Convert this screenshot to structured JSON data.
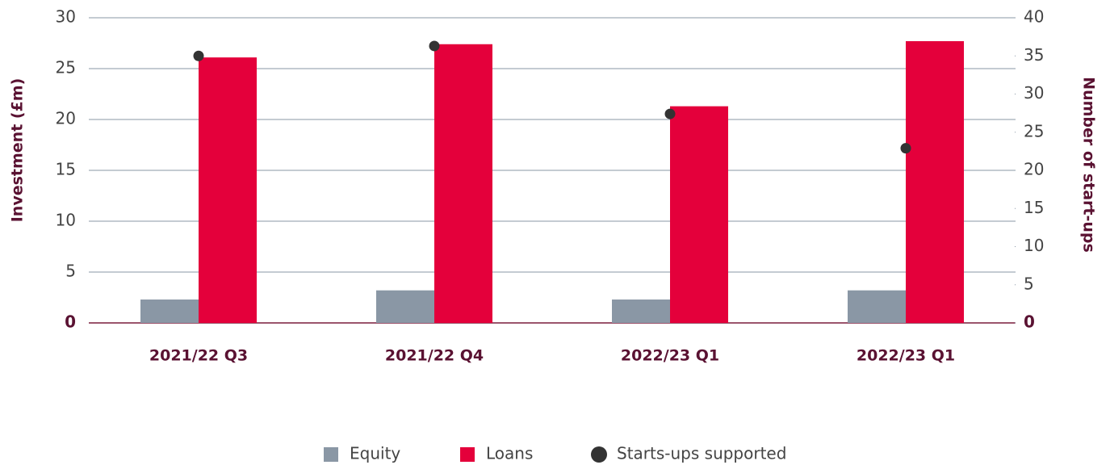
{
  "chart_data": {
    "type": "bar",
    "y_label": "Investment (£m)",
    "y2_label": "Number of start-ups",
    "categories": [
      "2021/22 Q3",
      "2021/22 Q4",
      "2022/23 Q1",
      "2022/23 Q1"
    ],
    "series": [
      {
        "name": "Equity",
        "color": "#8a97a5",
        "values": [
          2.3,
          3.2,
          2.3,
          3.2
        ]
      },
      {
        "name": "Loans",
        "color": "#e4003b",
        "values": [
          26.1,
          27.4,
          21.3,
          27.7
        ]
      },
      {
        "name": "Starts-ups supported",
        "color": "#333333",
        "type": "scatter",
        "axis": "y2",
        "values": [
          35,
          36.3,
          27.4,
          22.9
        ]
      }
    ],
    "ylim": [
      0,
      30
    ],
    "yticks": [
      0,
      5,
      10,
      15,
      20,
      25,
      30
    ],
    "y2lim": [
      0,
      40
    ],
    "y2ticks": [
      0,
      5,
      10,
      15,
      20,
      25,
      30,
      35,
      40
    ],
    "grid": true,
    "legend": "bottom"
  }
}
